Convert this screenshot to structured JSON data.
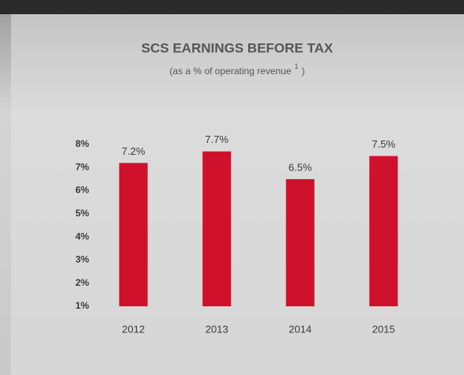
{
  "chart_data": {
    "type": "bar",
    "title": "SCS EARNINGS BEFORE TAX",
    "subtitle": "(as a % of operating revenue",
    "subtitle_footnote": "1",
    "subtitle_close": ")",
    "categories": [
      "2012",
      "2013",
      "2014",
      "2015"
    ],
    "values": [
      7.2,
      7.7,
      6.5,
      7.5
    ],
    "value_labels": [
      "7.2%",
      "7.7%",
      "6.5%",
      "7.5%"
    ],
    "color": "#d0112b",
    "ylim": [
      1,
      8
    ],
    "yticks": [
      {
        "value": 1,
        "label": "1%"
      },
      {
        "value": 2,
        "label": "2%"
      },
      {
        "value": 3,
        "label": "3%"
      },
      {
        "value": 4,
        "label": "4%"
      },
      {
        "value": 5,
        "label": "5%"
      },
      {
        "value": 6,
        "label": "6%"
      },
      {
        "value": 7,
        "label": "7%"
      },
      {
        "value": 8,
        "label": "8%"
      }
    ],
    "grid": false
  }
}
